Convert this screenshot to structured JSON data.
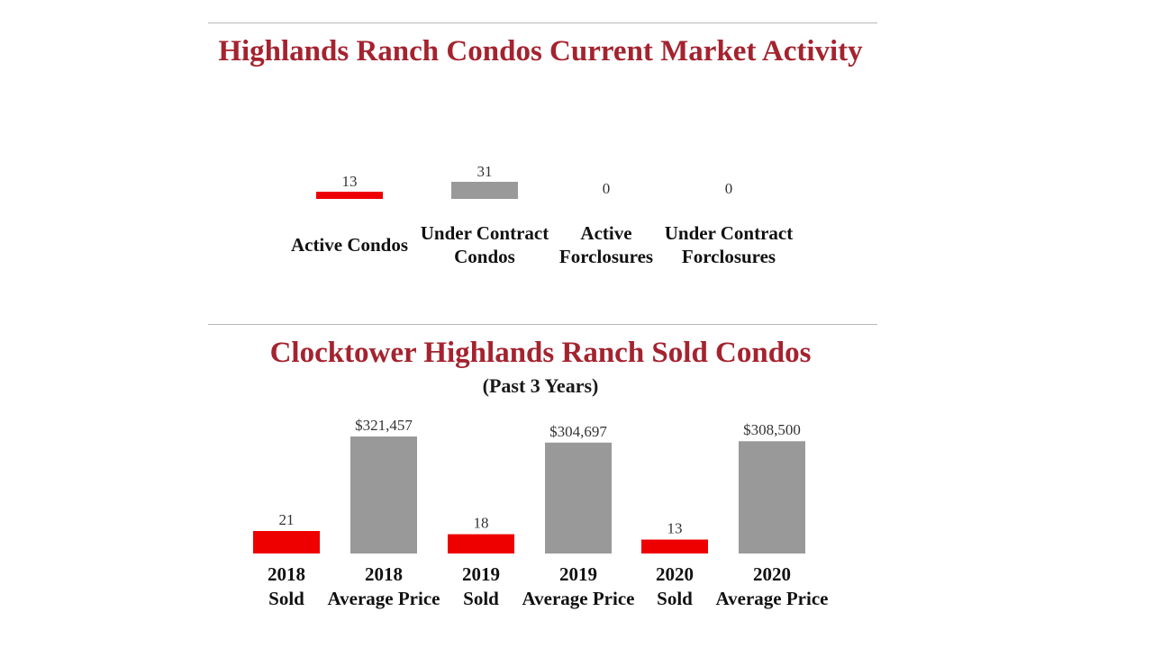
{
  "colors": {
    "heading": "#a4232f",
    "count_bar": "#ee0000",
    "price_bar": "#999999"
  },
  "market": {
    "heading": "Highlands Ranch Condos Current Market Activity"
  },
  "sold": {
    "heading": "Clocktower Highlands Ranch Sold Condos",
    "subheading": "(Past 3 Years)"
  },
  "chart_data": [
    {
      "type": "bar",
      "title": "Highlands Ranch Condos Current Market Activity",
      "categories": [
        [
          "Active Condos"
        ],
        [
          "Under Contract",
          "Condos"
        ],
        [
          "Active",
          "Forclosures"
        ],
        [
          "Under Contract",
          "Forclosures"
        ]
      ],
      "values": [
        13,
        31,
        0,
        0
      ],
      "value_labels": [
        "13",
        "31",
        "0",
        "0"
      ],
      "bar_colors": [
        "#ee0000",
        "#999999",
        "#999999",
        "#999999"
      ],
      "ylim": [
        0,
        31
      ],
      "grid": false,
      "legend": "none"
    },
    {
      "type": "bar",
      "title": "Clocktower Highlands Ranch Sold Condos",
      "subtitle": "(Past 3 Years)",
      "categories": [
        [
          "2018",
          "Sold"
        ],
        [
          "2018",
          "Average Price"
        ],
        [
          "2019",
          "Sold"
        ],
        [
          "2019",
          "Average Price"
        ],
        [
          "2020",
          "Sold"
        ],
        [
          "2020",
          "Average Price"
        ]
      ],
      "values": [
        21,
        321457,
        18,
        304697,
        13,
        308500
      ],
      "value_labels": [
        "21",
        "$321,457",
        "18",
        "$304,697",
        "13",
        "$308,500"
      ],
      "kinds": [
        "count",
        "price",
        "count",
        "price",
        "count",
        "price"
      ],
      "grid": false,
      "legend": "none"
    }
  ]
}
